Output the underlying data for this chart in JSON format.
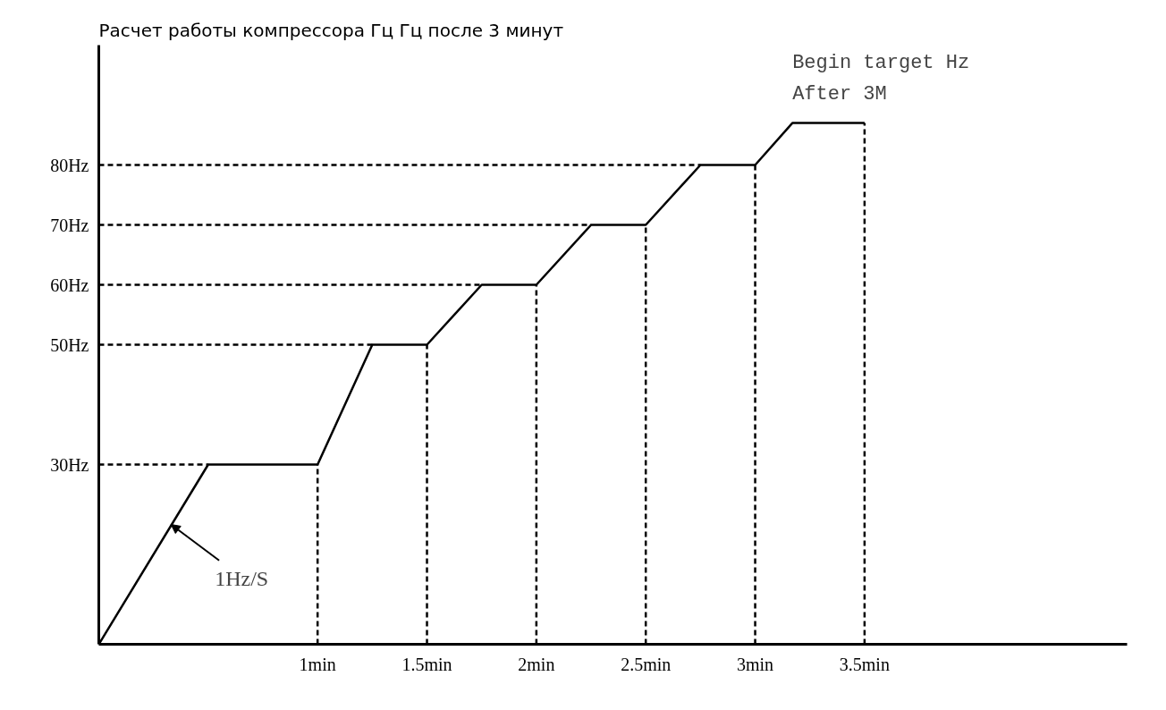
{
  "chart_data": {
    "type": "line",
    "title": "Расчет работы компрессора Гц Гц после 3 минут",
    "x": [
      0,
      0.5,
      1,
      1.25,
      1.5,
      1.75,
      2,
      2.25,
      2.5,
      2.75,
      3,
      3.17,
      3.5
    ],
    "series": [
      {
        "color": "#000000",
        "values": [
          0,
          30,
          30,
          50,
          50,
          60,
          60,
          70,
          70,
          80,
          80,
          87,
          87
        ]
      }
    ],
    "line_style": "solid",
    "xlim": [
      0,
      4.7
    ],
    "ylim": [
      0,
      100
    ],
    "xticks": [
      {
        "value": 1,
        "label": "1min"
      },
      {
        "value": 1.5,
        "label": "1.5min"
      },
      {
        "value": 2,
        "label": "2min"
      },
      {
        "value": 2.5,
        "label": "2.5min"
      },
      {
        "value": 3,
        "label": "3min"
      },
      {
        "value": 3.5,
        "label": "3.5min"
      }
    ],
    "yticks": [
      {
        "value": 30,
        "label": "30Hz"
      },
      {
        "value": 50,
        "label": "50Hz"
      },
      {
        "value": 60,
        "label": "60Hz"
      },
      {
        "value": 70,
        "label": "70Hz"
      },
      {
        "value": 80,
        "label": "80Hz"
      }
    ],
    "ref_lines": [
      {
        "axis": "y",
        "value": 30,
        "line_style": "dashed"
      },
      {
        "axis": "y",
        "value": 50,
        "line_style": "dashed"
      },
      {
        "axis": "y",
        "value": 60,
        "line_style": "dashed"
      },
      {
        "axis": "y",
        "value": 70,
        "line_style": "dashed"
      },
      {
        "axis": "y",
        "value": 80,
        "line_style": "dashed"
      },
      {
        "axis": "x",
        "value": 1,
        "line_style": "dashed"
      },
      {
        "axis": "x",
        "value": 1.5,
        "line_style": "dashed"
      },
      {
        "axis": "x",
        "value": 2,
        "line_style": "dashed"
      },
      {
        "axis": "x",
        "value": 2.5,
        "line_style": "dashed"
      },
      {
        "axis": "x",
        "value": 3,
        "line_style": "dashed"
      },
      {
        "axis": "x",
        "value": 3.5,
        "line_style": "dashed"
      }
    ],
    "annotations": [
      {
        "text": "1Hz/S",
        "x": 0.33,
        "y": 20
      },
      {
        "text": "Begin target Hz\nAfter 3M",
        "x": 3.17,
        "y": 87
      }
    ]
  }
}
